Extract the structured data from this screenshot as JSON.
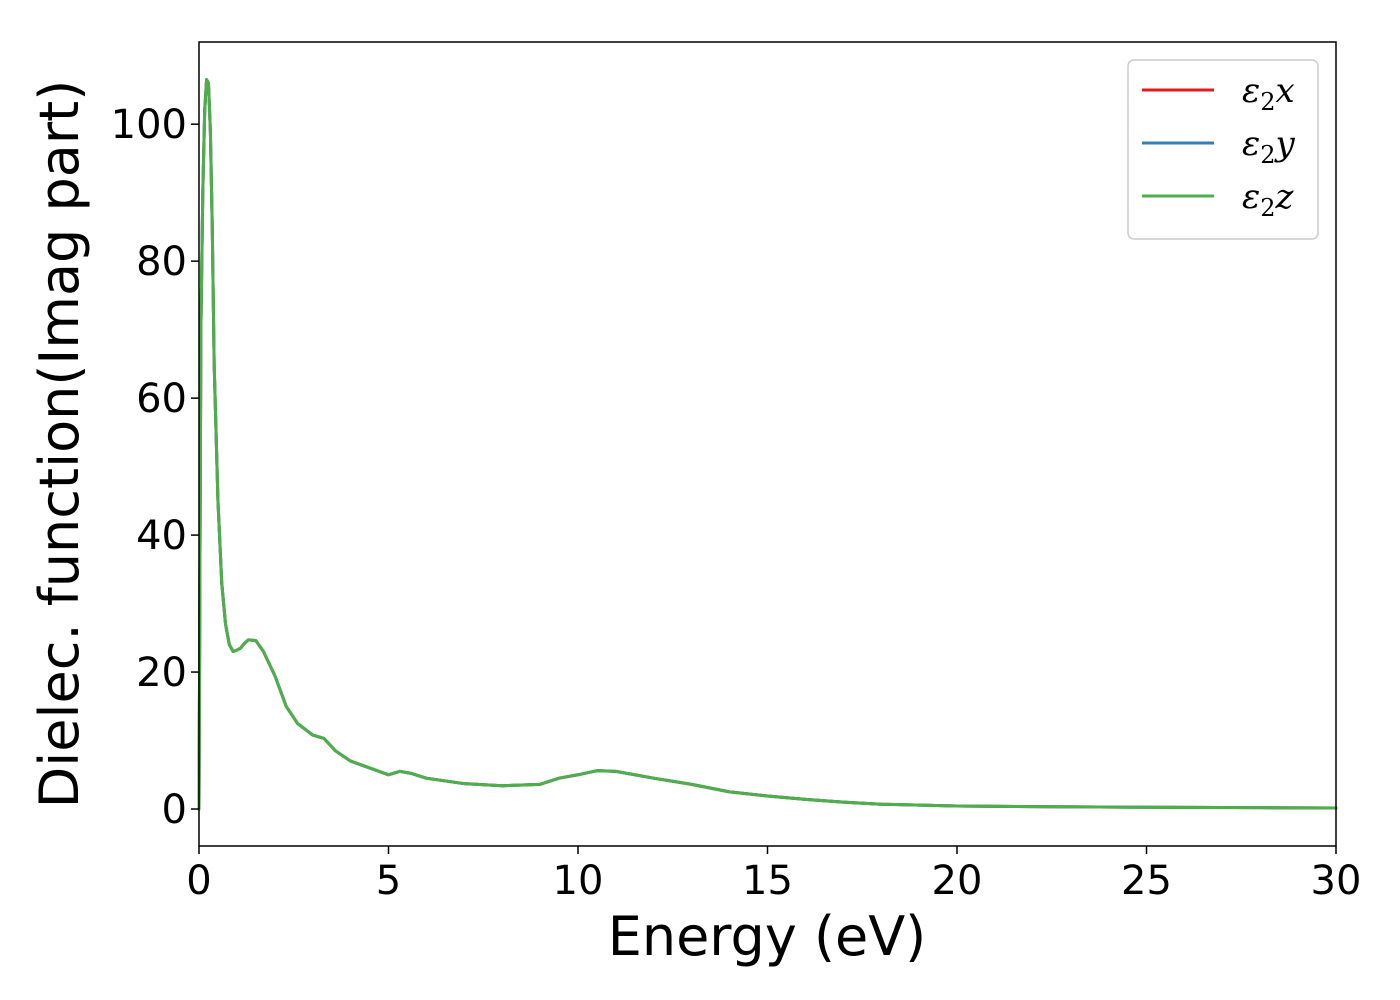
{
  "chart_data": {
    "type": "line",
    "xlabel": "Energy (eV)",
    "ylabel": "Dielec. function(Imag part)",
    "xlim": [
      0,
      30
    ],
    "ylim": [
      -5.4,
      112
    ],
    "xticks": [
      0,
      5,
      10,
      15,
      20,
      25,
      30
    ],
    "yticks": [
      0,
      20,
      40,
      60,
      80,
      100
    ],
    "grid": false,
    "legend_position": "top-right",
    "series": [
      {
        "name": "ε2x",
        "legend_base": "ε",
        "legend_sub": "2",
        "legend_suffix": "x",
        "color": "#e41a1c",
        "x": [
          0,
          0.05,
          0.1,
          0.15,
          0.2,
          0.25,
          0.3,
          0.35,
          0.4,
          0.5,
          0.6,
          0.7,
          0.8,
          0.9,
          1.0,
          1.1,
          1.2,
          1.3,
          1.5,
          1.7,
          2.0,
          2.3,
          2.6,
          3.0,
          3.3,
          3.6,
          4.0,
          4.5,
          5.0,
          5.3,
          5.6,
          6.0,
          7.0,
          8.0,
          9.0,
          9.5,
          10.0,
          10.5,
          11.0,
          12.0,
          13.0,
          14.0,
          15.0,
          16.0,
          17.0,
          18.0,
          20.0,
          22.0,
          25.0,
          28.0,
          30.0
        ],
        "y": [
          0,
          70,
          90,
          102,
          106.5,
          106,
          99,
          85,
          65,
          45,
          33,
          27,
          24,
          23,
          23.2,
          23.5,
          24.2,
          24.7,
          24.6,
          23,
          19.5,
          15,
          12.5,
          10.8,
          10.3,
          8.5,
          7,
          6,
          5,
          5.5,
          5.2,
          4.5,
          3.7,
          3.4,
          3.6,
          4.5,
          5,
          5.6,
          5.5,
          4.5,
          3.6,
          2.5,
          1.9,
          1.4,
          1.0,
          0.7,
          0.45,
          0.35,
          0.25,
          0.2,
          0.15
        ]
      },
      {
        "name": "ε2y",
        "legend_base": "ε",
        "legend_sub": "2",
        "legend_suffix": "y",
        "color": "#377eb8",
        "x": [
          0,
          0.05,
          0.1,
          0.15,
          0.2,
          0.25,
          0.3,
          0.35,
          0.4,
          0.5,
          0.6,
          0.7,
          0.8,
          0.9,
          1.0,
          1.1,
          1.2,
          1.3,
          1.5,
          1.7,
          2.0,
          2.3,
          2.6,
          3.0,
          3.3,
          3.6,
          4.0,
          4.5,
          5.0,
          5.3,
          5.6,
          6.0,
          7.0,
          8.0,
          9.0,
          9.5,
          10.0,
          10.5,
          11.0,
          12.0,
          13.0,
          14.0,
          15.0,
          16.0,
          17.0,
          18.0,
          20.0,
          22.0,
          25.0,
          28.0,
          30.0
        ],
        "y": [
          0,
          70,
          90,
          102,
          106.5,
          106,
          99,
          85,
          65,
          45,
          33,
          27,
          24,
          23,
          23.2,
          23.5,
          24.2,
          24.7,
          24.6,
          23,
          19.5,
          15,
          12.5,
          10.8,
          10.3,
          8.5,
          7,
          6,
          5,
          5.5,
          5.2,
          4.5,
          3.7,
          3.4,
          3.6,
          4.5,
          5,
          5.6,
          5.5,
          4.5,
          3.6,
          2.5,
          1.9,
          1.4,
          1.0,
          0.7,
          0.45,
          0.35,
          0.25,
          0.2,
          0.15
        ]
      },
      {
        "name": "ε2z",
        "legend_base": "ε",
        "legend_sub": "2",
        "legend_suffix": "z",
        "color": "#4daf4a",
        "x": [
          0,
          0.05,
          0.1,
          0.15,
          0.2,
          0.25,
          0.3,
          0.35,
          0.4,
          0.5,
          0.6,
          0.7,
          0.8,
          0.9,
          1.0,
          1.1,
          1.2,
          1.3,
          1.5,
          1.7,
          2.0,
          2.3,
          2.6,
          3.0,
          3.3,
          3.6,
          4.0,
          4.5,
          5.0,
          5.3,
          5.6,
          6.0,
          7.0,
          8.0,
          9.0,
          9.5,
          10.0,
          10.5,
          11.0,
          12.0,
          13.0,
          14.0,
          15.0,
          16.0,
          17.0,
          18.0,
          20.0,
          22.0,
          25.0,
          28.0,
          30.0
        ],
        "y": [
          0,
          70,
          90,
          102,
          106.5,
          106,
          99,
          85,
          65,
          45,
          33,
          27,
          24,
          23,
          23.2,
          23.5,
          24.2,
          24.7,
          24.6,
          23,
          19.5,
          15,
          12.5,
          10.8,
          10.3,
          8.5,
          7,
          6,
          5,
          5.5,
          5.2,
          4.5,
          3.7,
          3.4,
          3.6,
          4.5,
          5,
          5.6,
          5.5,
          4.5,
          3.6,
          2.5,
          1.9,
          1.4,
          1.0,
          0.7,
          0.45,
          0.35,
          0.25,
          0.2,
          0.15
        ]
      }
    ]
  }
}
